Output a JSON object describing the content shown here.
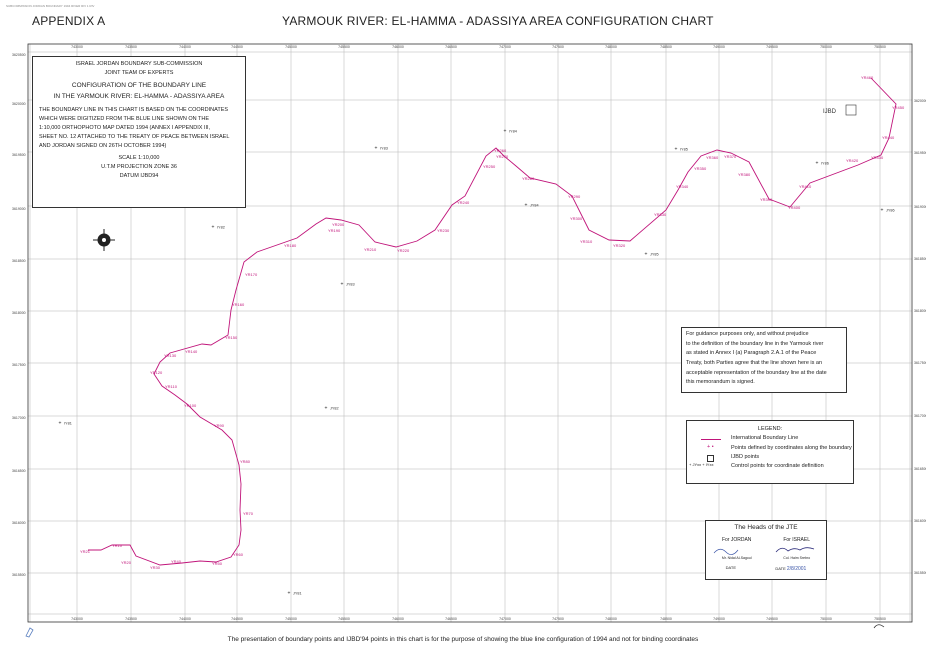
{
  "header": {
    "scan_code": "SUBCOMMISSION JORDAN BOUNDARY 1994 RIVER RIV 1 RIV",
    "appendix": "APPENDIX A",
    "title": "YARMOUK RIVER: EL-HAMMA - ADASSIYA AREA CONFIGURATION CHART"
  },
  "grid": {
    "x_labels": [
      "743000",
      "743500",
      "744000",
      "744500",
      "745000",
      "745500",
      "746000",
      "746500",
      "747000",
      "747500",
      "748000",
      "748500",
      "749000",
      "749500",
      "750000",
      "750500"
    ],
    "y_labels_left": [
      "3620500",
      "3620000",
      "3619500",
      "3619000",
      "3618500",
      "3618000",
      "3617500",
      "3617000",
      "3616500",
      "3616000",
      "3615500"
    ],
    "y_labels_right": [
      "3620000",
      "3619500",
      "3619000",
      "3618500",
      "3618000",
      "3617500",
      "3617000",
      "3616500",
      "3616000",
      "3615500"
    ]
  },
  "info_box": {
    "line1": "ISRAEL JORDAN BOUNDARY SUB-COMMISSION",
    "line2": "JOINT TEAM OF EXPERTS",
    "heading1": "CONFIGURATION OF THE BOUNDARY LINE",
    "heading2": "IN THE YARMOUK RIVER: EL-HAMMA -  ADASSIYA AREA",
    "body": [
      "THE BOUNDARY LINE IN THIS CHART IS BASED ON THE COORDINATES",
      "WHICH WERE DIGITIZED FROM THE BLUE LINE SHOWN ON THE",
      "1:10,000 ORTHOPHOTO MAP DATED 1994 (ANNEX I APPENDIX III,",
      "SHEET NO. 12 ATTACHED TO THE TREATY OF PEACE BETWEEN ISRAEL",
      "AND JORDAN SIGNED ON 26TH OCTOBER 1994)"
    ],
    "scale": "SCALE 1:10,000",
    "projection": "U.T.M PROJECTION ZONE 36",
    "datum": "DATUM IJBD94"
  },
  "guidance": {
    "lines": [
      "For guidance purposes only, and without prejudice",
      "to the definition of the boundary line in the Yarmouk river",
      "as stated in Annex I (a) Paragraph 2.A.1 of the Peace",
      "Treaty, both Parties agree that the line shown here is an",
      "acceptable representation of the boundary line at the date",
      "this memorandum is signed."
    ]
  },
  "legend": {
    "title": "LEGEND:",
    "items": [
      "International Boundary Line",
      "Points defined by coordinates along the boundary",
      "IJBD points",
      "Control points for coordinate definition"
    ],
    "control_sample": "+ JYxx  + IYxx"
  },
  "signatures": {
    "title": "The Heads of the JTE",
    "jordan_label": "For JORDAN",
    "israel_label": "For ISRAEL",
    "jordan_name": "Mr. Nidal Al-Sagoul",
    "israel_name": "Col. Haim Srebro",
    "date_label": "DATE",
    "israel_date": "2/8/2001"
  },
  "boundary": {
    "color": "#c0147a",
    "points": [
      {
        "label": "YR460"
      },
      {
        "label": "YR450"
      },
      {
        "label": "YR440"
      },
      {
        "label": "YR430"
      },
      {
        "label": "YR420"
      },
      {
        "label": "YR410"
      },
      {
        "label": "YR400"
      },
      {
        "label": "YR390"
      },
      {
        "label": "YR380"
      },
      {
        "label": "YR370"
      },
      {
        "label": "YR360"
      },
      {
        "label": "YR350"
      },
      {
        "label": "YR340"
      },
      {
        "label": "YR330"
      },
      {
        "label": "YR320"
      },
      {
        "label": "YR310"
      },
      {
        "label": "YR300"
      },
      {
        "label": "YR290"
      },
      {
        "label": "YR280"
      },
      {
        "label": "YR270"
      },
      {
        "label": "YR260"
      },
      {
        "label": "YR250"
      },
      {
        "label": "YR240"
      },
      {
        "label": "YR230"
      },
      {
        "label": "YR220"
      },
      {
        "label": "YR210"
      },
      {
        "label": "YR200"
      },
      {
        "label": "YR190"
      },
      {
        "label": "YR180"
      },
      {
        "label": "YR170"
      },
      {
        "label": "YR160"
      },
      {
        "label": "YR150"
      },
      {
        "label": "YR140"
      },
      {
        "label": "YR130"
      },
      {
        "label": "YR120"
      },
      {
        "label": "YR110"
      },
      {
        "label": "YR100"
      },
      {
        "label": "YR90"
      },
      {
        "label": "YR80"
      },
      {
        "label": "YR70"
      },
      {
        "label": "YR60"
      },
      {
        "label": "YR50"
      },
      {
        "label": "YR40"
      },
      {
        "label": "YR30"
      },
      {
        "label": "YR20"
      },
      {
        "label": "YR10"
      },
      {
        "label": "YR21"
      }
    ]
  },
  "control_points": [
    "IY81",
    "JY81",
    "IY82",
    "JY82",
    "JY83",
    "IY83",
    "IY84",
    "JY84",
    "IY85",
    "JY85",
    "IY86",
    "JY86"
  ],
  "ijbd_point": {
    "label": "IJBD"
  },
  "footer": "The presentation of boundary points and IJBD'94 points in this chart is for the purpose of showing the blue line configuration of 1994 and not for binding coordinates"
}
